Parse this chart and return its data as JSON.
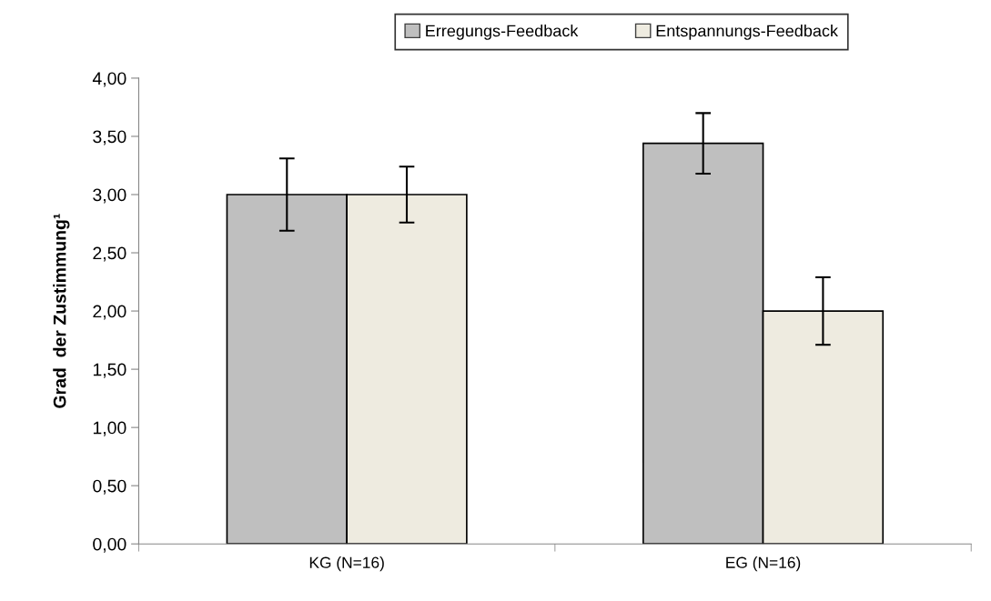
{
  "chart_data": {
    "type": "bar",
    "ylabel": "Grad  der Zustimmung¹",
    "categories": [
      "KG (N=16)",
      "EG (N=16)"
    ],
    "series": [
      {
        "name": "Erregungs-Feedback",
        "color": "#bfbfbf",
        "values": [
          3.0,
          3.44
        ],
        "errors": [
          0.31,
          0.26
        ]
      },
      {
        "name": "Entspannungs-Feedback",
        "color": "#eeebe0",
        "values": [
          3.0,
          2.0
        ],
        "errors": [
          0.24,
          0.29
        ]
      }
    ],
    "ylim": [
      0,
      4
    ],
    "yticks": [
      {
        "value": 0,
        "label": "0,00"
      },
      {
        "value": 0.5,
        "label": "0,50"
      },
      {
        "value": 1,
        "label": "1,00"
      },
      {
        "value": 1.5,
        "label": "1,50"
      },
      {
        "value": 2,
        "label": "2,00"
      },
      {
        "value": 2.5,
        "label": "2,50"
      },
      {
        "value": 3,
        "label": "3,00"
      },
      {
        "value": 3.5,
        "label": "3,50"
      },
      {
        "value": 4,
        "label": "4,00"
      }
    ],
    "grid": false,
    "legend": "top"
  }
}
